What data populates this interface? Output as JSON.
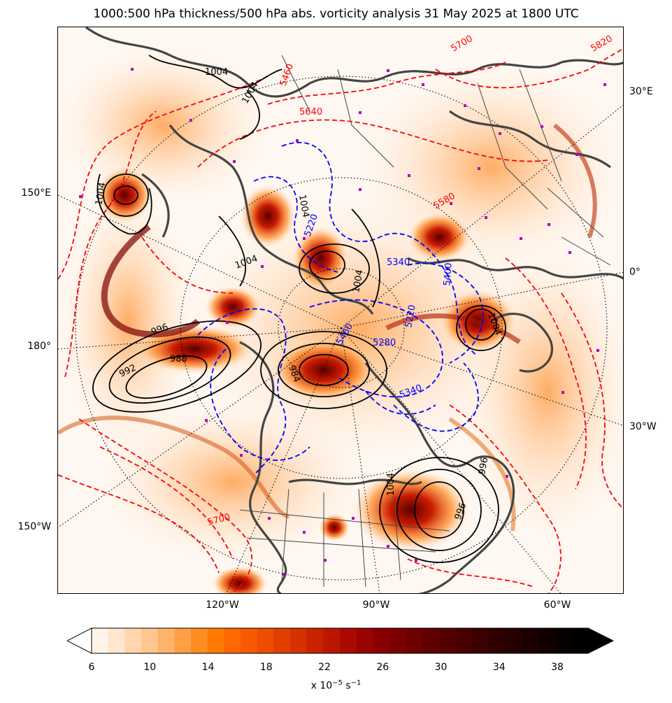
{
  "title": "1000:500 hPa thickness/500 hPa abs. vorticity analysis 31 May 2025 at 1800 UTC",
  "map": {
    "right_lon_labels": [
      "30°E",
      "0°",
      "30°W"
    ],
    "left_lon_labels": [
      "150°E",
      "180°",
      "150°W"
    ],
    "bottom_lon_labels": [
      "120°W",
      "90°W",
      "60°W"
    ],
    "pressure_contour_labels": [
      "1004",
      "1004",
      "1004",
      "1004",
      "996",
      "988",
      "992",
      "984",
      "1004",
      "1004",
      "996",
      "1004",
      "1004",
      "996"
    ],
    "thickness_labels_red": [
      "5700",
      "5640",
      "5820",
      "5580",
      "5460",
      "5700"
    ],
    "thickness_labels_blue": [
      "5220",
      "5340",
      "5280",
      "5220",
      "5340",
      "5400",
      "5460"
    ],
    "colors": {
      "pressure_contour": "#000000",
      "thickness_warm": "#ff0000",
      "thickness_cold": "#0000ff",
      "coastline": "#444444",
      "marker": "#b000c0"
    }
  },
  "colorbar": {
    "ticks": [
      "6",
      "10",
      "14",
      "18",
      "22",
      "26",
      "30",
      "34",
      "38"
    ],
    "units": "x 10",
    "units_exp": "−5",
    "units_tail": " s",
    "units_tail_exp": "−1",
    "colors": [
      "#fff4ea",
      "#ffe6cc",
      "#ffd6ad",
      "#ffc68f",
      "#ffb36b",
      "#ff9f45",
      "#ff8c1f",
      "#ff7a00",
      "#ff6800",
      "#f85a00",
      "#ee4c00",
      "#e23e00",
      "#d63000",
      "#c82200",
      "#ba1600",
      "#aa0a00",
      "#9a0400",
      "#8a0000",
      "#7c0000",
      "#6e0000",
      "#600000",
      "#540000",
      "#480000",
      "#3c0000",
      "#300000",
      "#260000",
      "#1c0000",
      "#120000",
      "#080000",
      "#000000"
    ]
  }
}
